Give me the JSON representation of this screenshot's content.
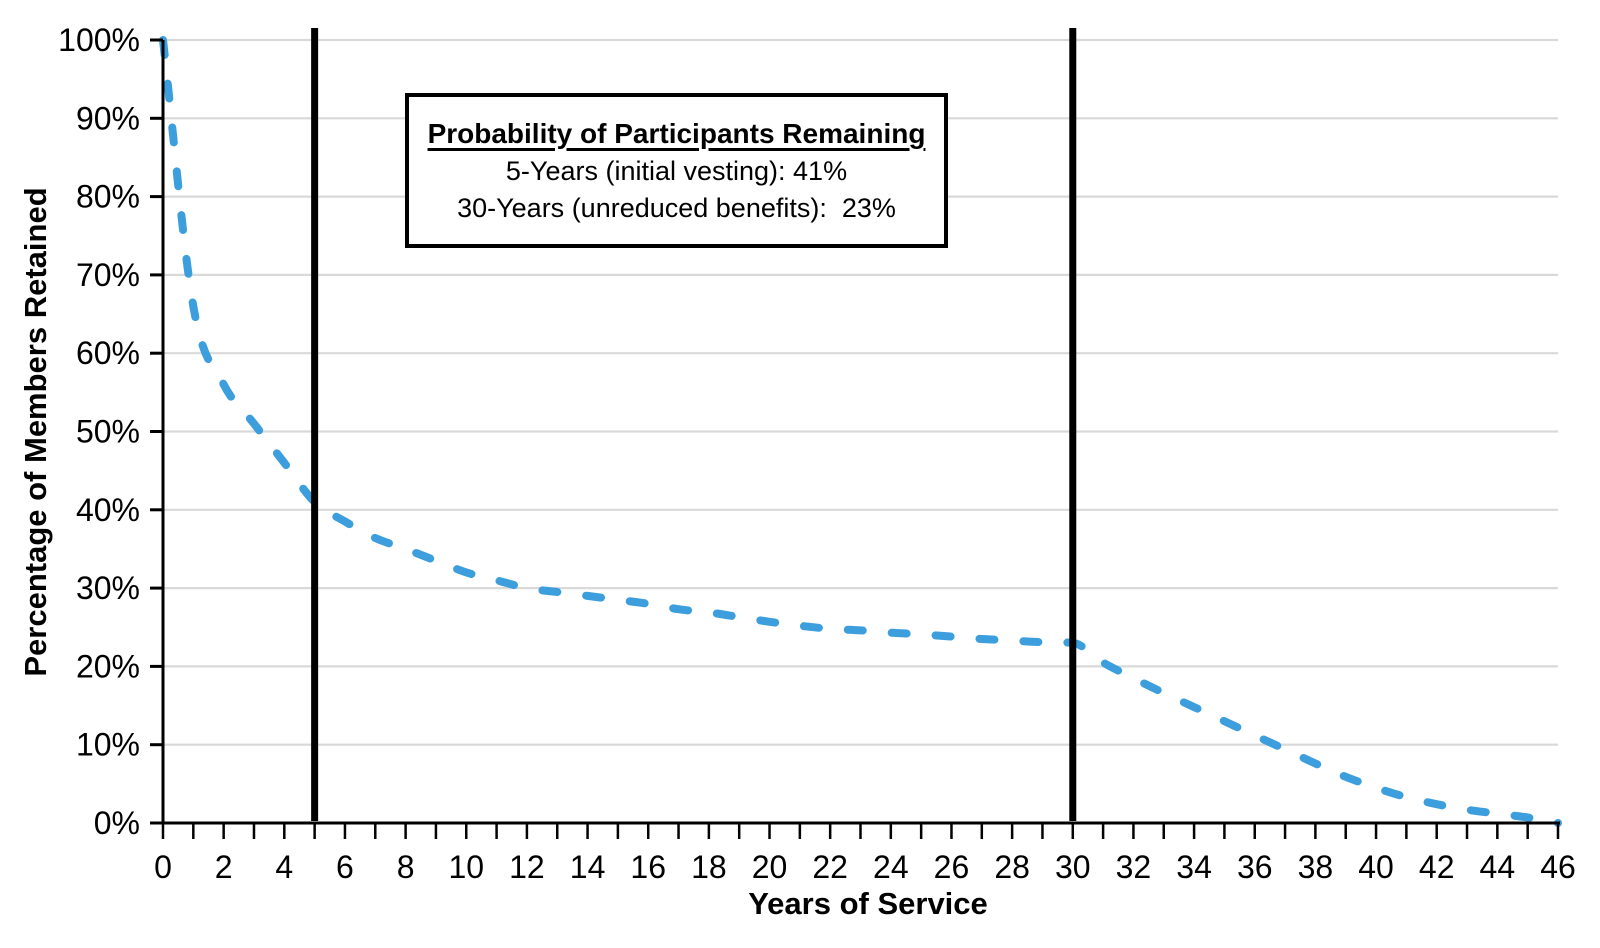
{
  "chart_data": {
    "type": "line",
    "title": "",
    "xlabel": "Years of Service",
    "ylabel": "Percentage of Members Retained",
    "xlim": [
      0,
      46
    ],
    "ylim": [
      0,
      100
    ],
    "grid": "horizontal-only",
    "gridline_color": "#D9D9D9",
    "legend": "none",
    "x_major_tick_step": 2,
    "x_minor_tick_step": 1,
    "y_tick_step": 10,
    "x_tick_labels": [
      "0",
      "2",
      "4",
      "6",
      "8",
      "10",
      "12",
      "14",
      "16",
      "18",
      "20",
      "22",
      "24",
      "26",
      "28",
      "30",
      "32",
      "34",
      "36",
      "38",
      "40",
      "42",
      "44",
      "46"
    ],
    "y_tick_labels": [
      "0%",
      "10%",
      "20%",
      "30%",
      "40%",
      "50%",
      "60%",
      "70%",
      "80%",
      "90%",
      "100%"
    ],
    "line_style": "dashed",
    "line_color": "#3D9EDD",
    "reference_line_color": "#000000",
    "vertical_reference_lines_x": [
      5,
      30
    ],
    "series": [
      {
        "name": "Percentage of Members Retained",
        "x": [
          0,
          1,
          2,
          3,
          4,
          5,
          6,
          7,
          8,
          9,
          10,
          11,
          12,
          13,
          14,
          15,
          16,
          17,
          18,
          19,
          20,
          21,
          22,
          23,
          24,
          25,
          26,
          27,
          28,
          29,
          30,
          31,
          32,
          33,
          34,
          35,
          36,
          37,
          38,
          39,
          40,
          41,
          42,
          43,
          44,
          45,
          46
        ],
        "values": [
          100,
          66,
          56,
          51,
          46,
          41,
          38.5,
          36.4,
          35,
          33.5,
          32,
          31,
          30,
          29.5,
          29,
          28.5,
          28,
          27.3,
          26.9,
          26.3,
          25.7,
          25.2,
          24.8,
          24.6,
          24.3,
          24.1,
          23.8,
          23.5,
          23.3,
          23.1,
          23,
          20.5,
          18.5,
          16.6,
          14.8,
          13,
          11.2,
          9.4,
          7.6,
          5.9,
          4.5,
          3.3,
          2.4,
          1.7,
          1.2,
          0.7,
          0
        ]
      }
    ],
    "annotation_box": {
      "title": "Probability of Participants Remaining",
      "line1": "5-Years (initial vesting): 41%",
      "line2": "30-Years (unreduced benefits):  23%"
    },
    "key_points": {
      "at_5_years_percent": 41,
      "at_30_years_percent": 23
    }
  }
}
